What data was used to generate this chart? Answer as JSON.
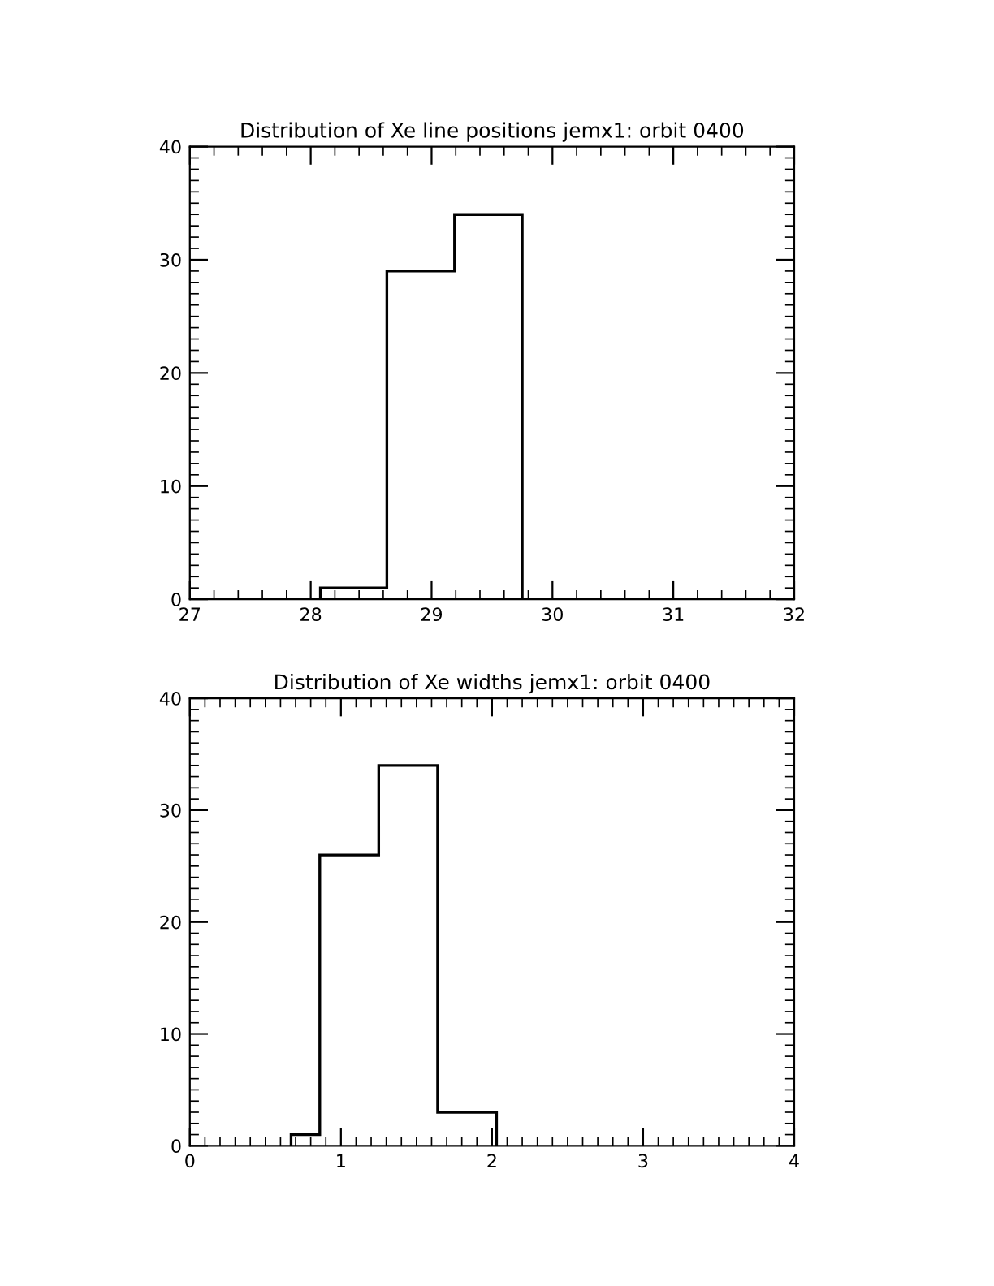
{
  "chart_data": [
    {
      "type": "histogram",
      "title": "Distribution of Xe line positions jemx1: orbit 0400",
      "bins": [
        28.08,
        28.63,
        29.19,
        29.75
      ],
      "values": [
        1,
        29,
        34
      ],
      "color": "#000000",
      "xlim": [
        27,
        32
      ],
      "xticks": [
        27,
        28,
        29,
        30,
        31,
        32
      ],
      "ylim": [
        0,
        40
      ],
      "yticks": [
        0,
        10,
        20,
        30,
        40
      ]
    },
    {
      "type": "histogram",
      "title": "Distribution of Xe widths jemx1: orbit 0400",
      "bins": [
        0.67,
        0.86,
        1.25,
        1.64,
        2.03
      ],
      "values": [
        1,
        26,
        34,
        3
      ],
      "color": "#000000",
      "xlim": [
        0,
        4
      ],
      "xticks": [
        0,
        1,
        2,
        3,
        4
      ],
      "ylim": [
        0,
        40
      ],
      "yticks": [
        0,
        10,
        20,
        30,
        40
      ]
    }
  ]
}
